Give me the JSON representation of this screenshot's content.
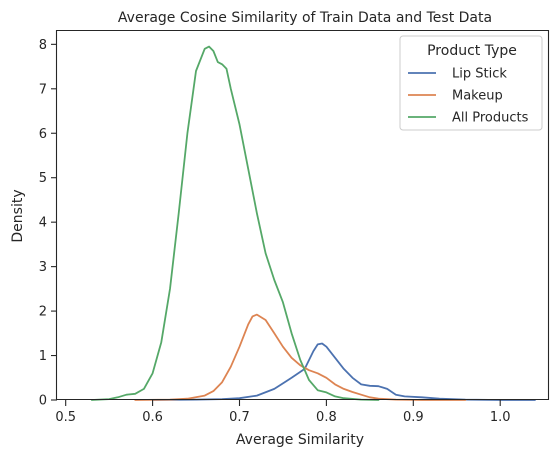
{
  "chart_data": {
    "type": "line",
    "title": "Average Cosine Similarity of Train Data and Test Data",
    "xlabel": "Average Similarity",
    "ylabel": "Density",
    "xlim": [
      0.49,
      1.055
    ],
    "ylim": [
      0,
      8.3
    ],
    "xticks": [
      "0.5",
      "0.6",
      "0.7",
      "0.8",
      "0.9",
      "1.0"
    ],
    "yticks": [
      "0",
      "1",
      "2",
      "3",
      "4",
      "5",
      "6",
      "7",
      "8"
    ],
    "grid": false,
    "legend": {
      "title": "Product Type",
      "position": "top-right"
    },
    "series": [
      {
        "name": "Lip Stick",
        "color": "#4c72b0",
        "points": [
          [
            0.6,
            0
          ],
          [
            0.65,
            0.01
          ],
          [
            0.68,
            0.02
          ],
          [
            0.7,
            0.04
          ],
          [
            0.72,
            0.1
          ],
          [
            0.74,
            0.25
          ],
          [
            0.76,
            0.5
          ],
          [
            0.775,
            0.7
          ],
          [
            0.785,
            1.1
          ],
          [
            0.79,
            1.25
          ],
          [
            0.795,
            1.27
          ],
          [
            0.8,
            1.2
          ],
          [
            0.81,
            0.95
          ],
          [
            0.82,
            0.7
          ],
          [
            0.83,
            0.5
          ],
          [
            0.84,
            0.35
          ],
          [
            0.85,
            0.32
          ],
          [
            0.86,
            0.31
          ],
          [
            0.87,
            0.25
          ],
          [
            0.88,
            0.12
          ],
          [
            0.89,
            0.08
          ],
          [
            0.91,
            0.06
          ],
          [
            0.93,
            0.03
          ],
          [
            0.96,
            0.01
          ],
          [
            1.0,
            0.0
          ],
          [
            1.04,
            0.0
          ]
        ]
      },
      {
        "name": "Makeup",
        "color": "#dd8452",
        "points": [
          [
            0.58,
            0
          ],
          [
            0.62,
            0.01
          ],
          [
            0.64,
            0.03
          ],
          [
            0.66,
            0.1
          ],
          [
            0.67,
            0.2
          ],
          [
            0.68,
            0.4
          ],
          [
            0.69,
            0.75
          ],
          [
            0.7,
            1.2
          ],
          [
            0.71,
            1.7
          ],
          [
            0.715,
            1.88
          ],
          [
            0.72,
            1.92
          ],
          [
            0.73,
            1.8
          ],
          [
            0.74,
            1.5
          ],
          [
            0.75,
            1.2
          ],
          [
            0.76,
            0.95
          ],
          [
            0.77,
            0.78
          ],
          [
            0.78,
            0.67
          ],
          [
            0.79,
            0.6
          ],
          [
            0.8,
            0.5
          ],
          [
            0.81,
            0.35
          ],
          [
            0.82,
            0.25
          ],
          [
            0.83,
            0.18
          ],
          [
            0.84,
            0.12
          ],
          [
            0.85,
            0.06
          ],
          [
            0.86,
            0.03
          ],
          [
            0.88,
            0.01
          ],
          [
            0.91,
            0.0
          ],
          [
            0.96,
            0.0
          ]
        ]
      },
      {
        "name": "All Products",
        "color": "#55a868",
        "points": [
          [
            0.53,
            0
          ],
          [
            0.55,
            0.02
          ],
          [
            0.56,
            0.06
          ],
          [
            0.57,
            0.12
          ],
          [
            0.58,
            0.14
          ],
          [
            0.59,
            0.25
          ],
          [
            0.6,
            0.6
          ],
          [
            0.61,
            1.3
          ],
          [
            0.62,
            2.5
          ],
          [
            0.63,
            4.2
          ],
          [
            0.64,
            6.0
          ],
          [
            0.65,
            7.4
          ],
          [
            0.66,
            7.9
          ],
          [
            0.665,
            7.95
          ],
          [
            0.67,
            7.85
          ],
          [
            0.675,
            7.6
          ],
          [
            0.68,
            7.55
          ],
          [
            0.685,
            7.45
          ],
          [
            0.69,
            7.0
          ],
          [
            0.7,
            6.2
          ],
          [
            0.71,
            5.2
          ],
          [
            0.72,
            4.2
          ],
          [
            0.73,
            3.3
          ],
          [
            0.74,
            2.7
          ],
          [
            0.75,
            2.2
          ],
          [
            0.76,
            1.5
          ],
          [
            0.77,
            0.9
          ],
          [
            0.78,
            0.45
          ],
          [
            0.79,
            0.22
          ],
          [
            0.8,
            0.17
          ],
          [
            0.81,
            0.08
          ],
          [
            0.82,
            0.04
          ],
          [
            0.84,
            0.01
          ],
          [
            0.86,
            0.0
          ]
        ]
      }
    ]
  }
}
